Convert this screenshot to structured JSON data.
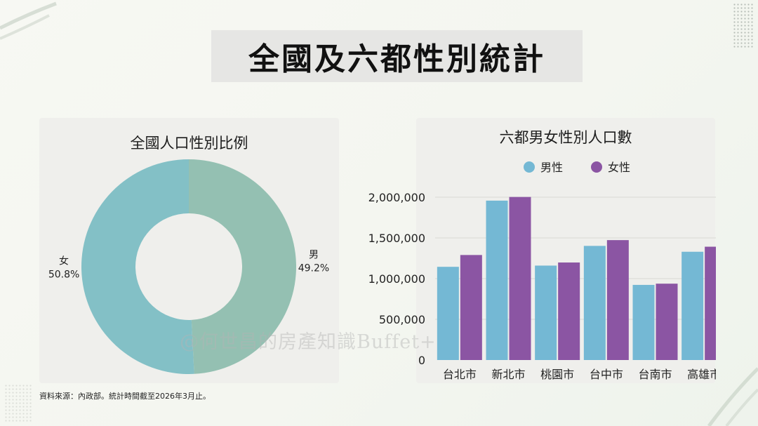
{
  "title": "全國及六都性別統計",
  "source": "資料來源：內政部。統計時間截至2026年3月止。",
  "watermark": "@何世昌的房產知識Buffet+",
  "colors": {
    "male": "#74b8d4",
    "female": "#8b55a3",
    "pie_male": "#94c0b2",
    "pie_female": "#83c0c6"
  },
  "chart_data": [
    {
      "type": "pie",
      "title": "全國人口性別比例",
      "labels": [
        "男",
        "女"
      ],
      "values": [
        49.2,
        50.8
      ],
      "value_labels": [
        "49.2%",
        "50.8%"
      ],
      "donut": true
    },
    {
      "type": "bar",
      "title": "六都男女性別人口數",
      "categories": [
        "台北市",
        "新北市",
        "桃園市",
        "台中市",
        "台南市",
        "高雄市"
      ],
      "series": [
        {
          "name": "男性",
          "values": [
            1145000,
            1958000,
            1160000,
            1402000,
            923000,
            1330000
          ]
        },
        {
          "name": "女性",
          "values": [
            1290000,
            2003000,
            1198000,
            1473000,
            938000,
            1392000
          ]
        }
      ],
      "ylim": [
        0,
        2000000
      ],
      "yticks": [
        0,
        500000,
        1000000,
        1500000,
        2000000
      ],
      "ytick_labels": [
        "0",
        "500,000",
        "1,000,000",
        "1,500,000",
        "2,000,000"
      ],
      "legend": "top",
      "grid": true
    }
  ]
}
